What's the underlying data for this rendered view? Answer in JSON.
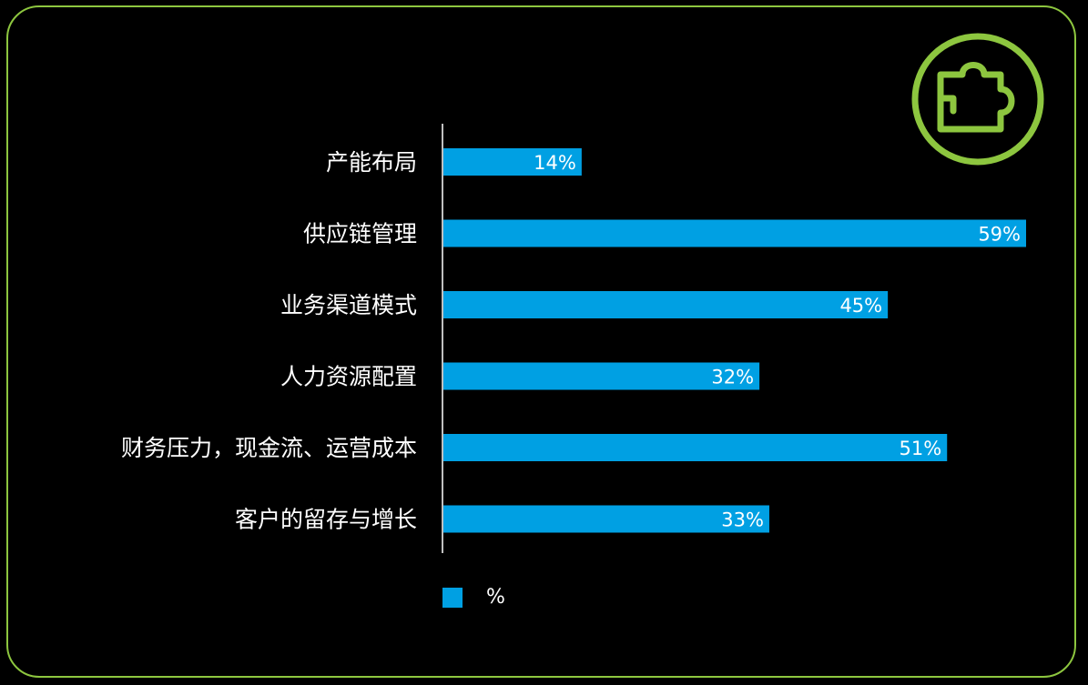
{
  "colors": {
    "frame": "#8DC63F",
    "bar": "#00A0E3",
    "axis": "#FFFFFF",
    "text": "#FFFFFF",
    "background": "#000000"
  },
  "icon": "puzzle-piece-icon",
  "chart_data": {
    "type": "bar",
    "orientation": "horizontal",
    "categories": [
      "产能布局",
      "供应链管理",
      "业务渠道模式",
      "人力资源配置",
      "财务压力，现金流、运营成本",
      "客户的留存与增长"
    ],
    "series": [
      {
        "name": "%",
        "values": [
          14,
          59,
          45,
          32,
          51,
          33
        ],
        "labels": [
          "14%",
          "59%",
          "45%",
          "32%",
          "51%",
          "33%"
        ]
      }
    ],
    "xlim": [
      0,
      59
    ],
    "grid": false,
    "legend": "bottom"
  }
}
